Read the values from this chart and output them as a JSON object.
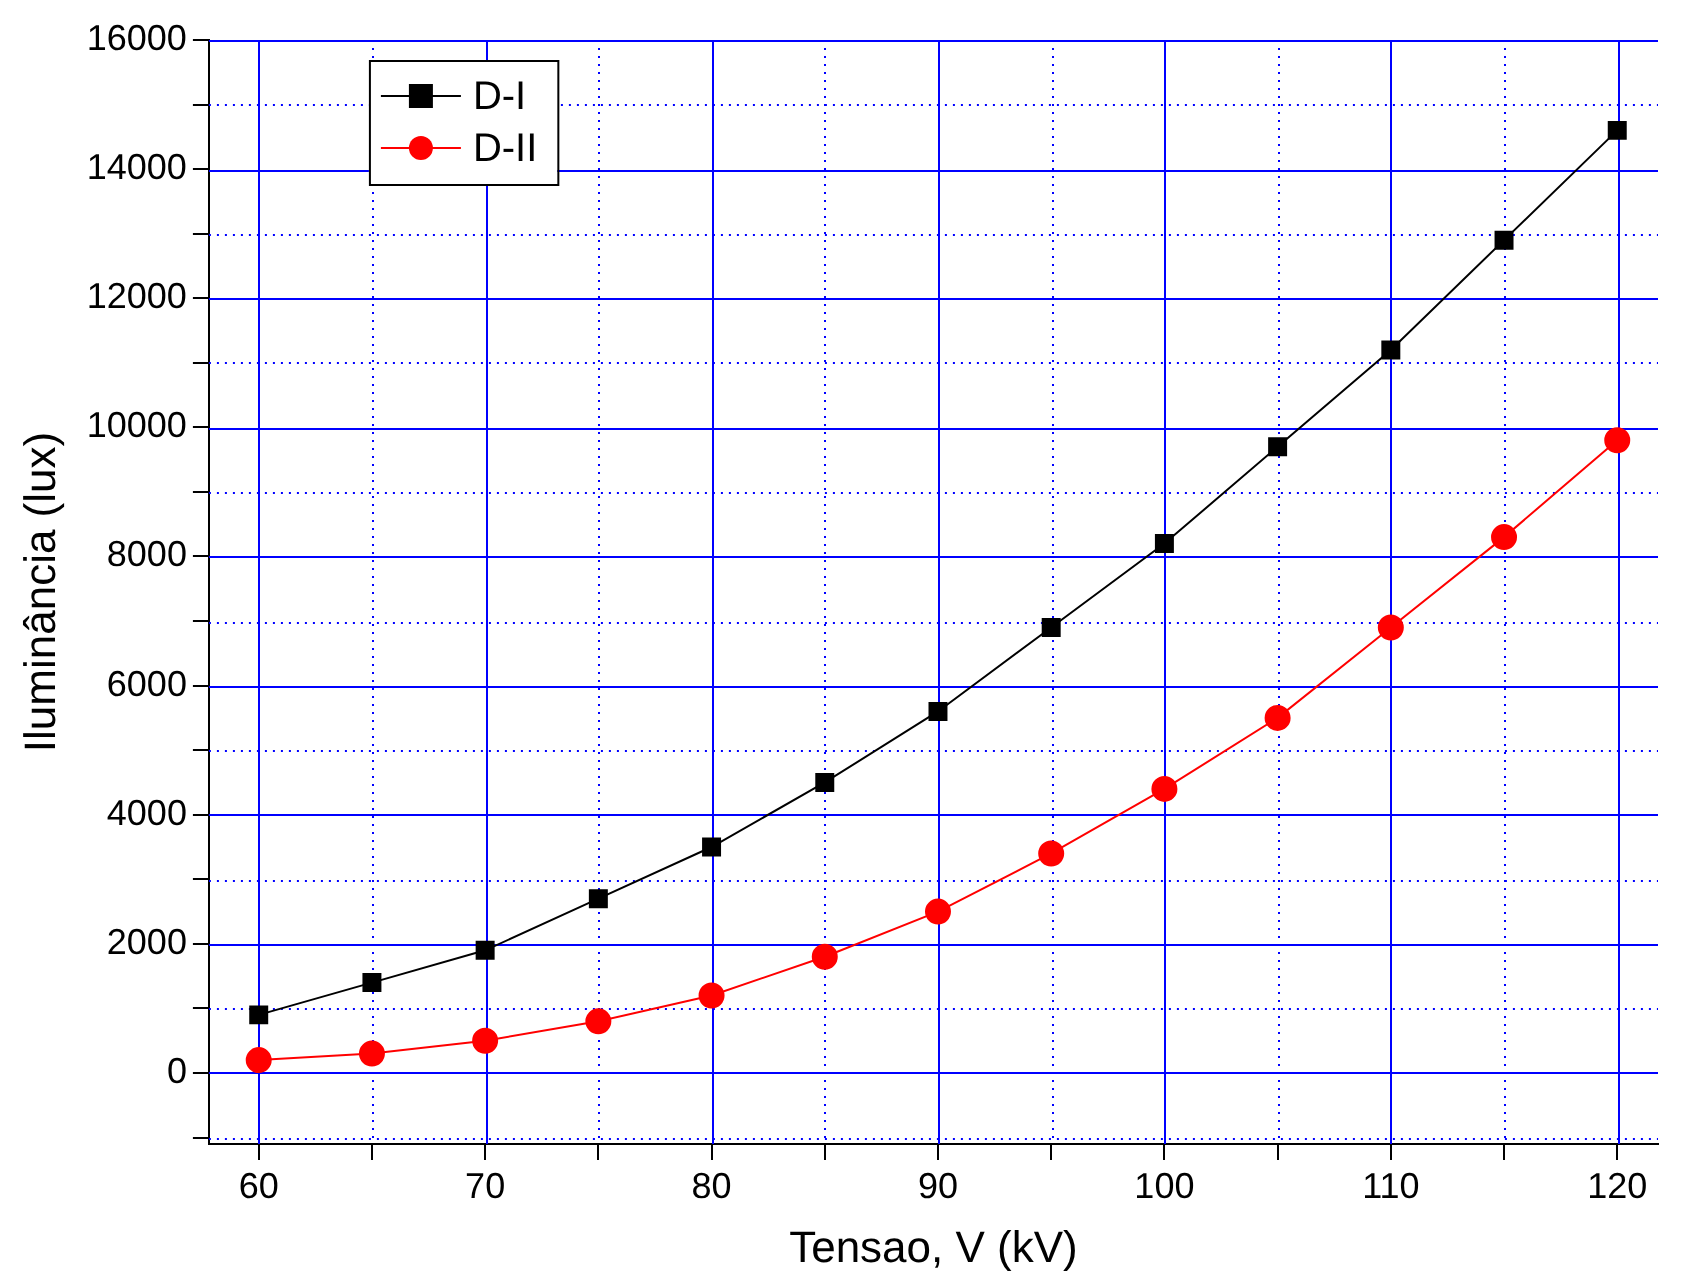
{
  "chart_data": {
    "type": "line",
    "xlabel": "Tensao, V (kV)",
    "ylabel": "Iluminância (lux)",
    "x": [
      60,
      65,
      70,
      75,
      80,
      85,
      90,
      95,
      100,
      105,
      110,
      115,
      120
    ],
    "series": [
      {
        "name": "D-I",
        "color": "#000000",
        "marker": "square",
        "values": [
          900,
          1400,
          1900,
          2700,
          3500,
          4500,
          5600,
          6900,
          8200,
          9700,
          11200,
          12900,
          14600
        ]
      },
      {
        "name": "D-II",
        "color": "#ff0000",
        "marker": "circle",
        "values": [
          200,
          300,
          500,
          800,
          1200,
          1800,
          2500,
          3400,
          4400,
          5500,
          6900,
          8300,
          9800
        ]
      }
    ],
    "xlim": [
      57.8,
      121.8
    ],
    "xticks": [
      60,
      {
        "value": 65,
        "label": null
      },
      70,
      {
        "value": 75,
        "label": null
      },
      80,
      {
        "value": 85,
        "label": null
      },
      90,
      {
        "value": 95,
        "label": null
      },
      100,
      {
        "value": 105,
        "label": null
      },
      110,
      {
        "value": 115,
        "label": null
      },
      120
    ],
    "ylim": [
      -1100,
      16000
    ],
    "yticks": [
      {
        "value": -1000,
        "label": null
      },
      0,
      {
        "value": 1000,
        "label": null
      },
      2000,
      {
        "value": 3000,
        "label": null
      },
      4000,
      {
        "value": 5000,
        "label": null
      },
      6000,
      {
        "value": 7000,
        "label": null
      },
      8000,
      {
        "value": 9000,
        "label": null
      },
      10000,
      {
        "value": 11000,
        "label": null
      },
      12000,
      {
        "value": 13000,
        "label": null
      },
      14000,
      {
        "value": 15000,
        "label": null
      },
      16000
    ],
    "grid": true,
    "legend": "top left",
    "line_style": "solid"
  }
}
